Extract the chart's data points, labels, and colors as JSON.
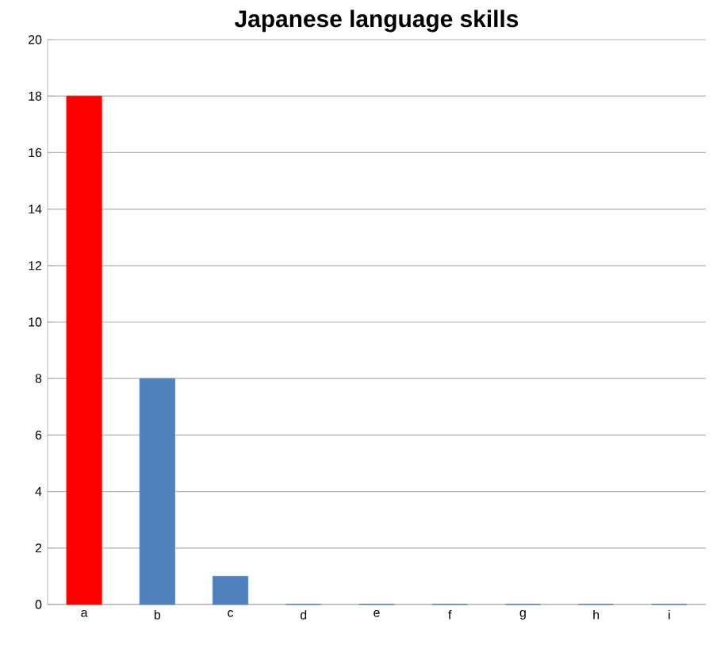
{
  "chart_data": {
    "type": "bar",
    "title": "Japanese language skills",
    "categories": [
      "a",
      "b",
      "c",
      "d",
      "e",
      "f",
      "g",
      "h",
      "i"
    ],
    "values": [
      18,
      8,
      1,
      0,
      0,
      0,
      0,
      0,
      0
    ],
    "colors": [
      "#ff0000",
      "#4f81bd",
      "#4f81bd",
      "#4f81bd",
      "#4f81bd",
      "#4f81bd",
      "#4f81bd",
      "#4f81bd",
      "#4f81bd"
    ],
    "ylim": [
      0,
      20
    ],
    "yticks": [
      0,
      2,
      4,
      6,
      8,
      10,
      12,
      14,
      16,
      18,
      20
    ],
    "grid": "y"
  }
}
